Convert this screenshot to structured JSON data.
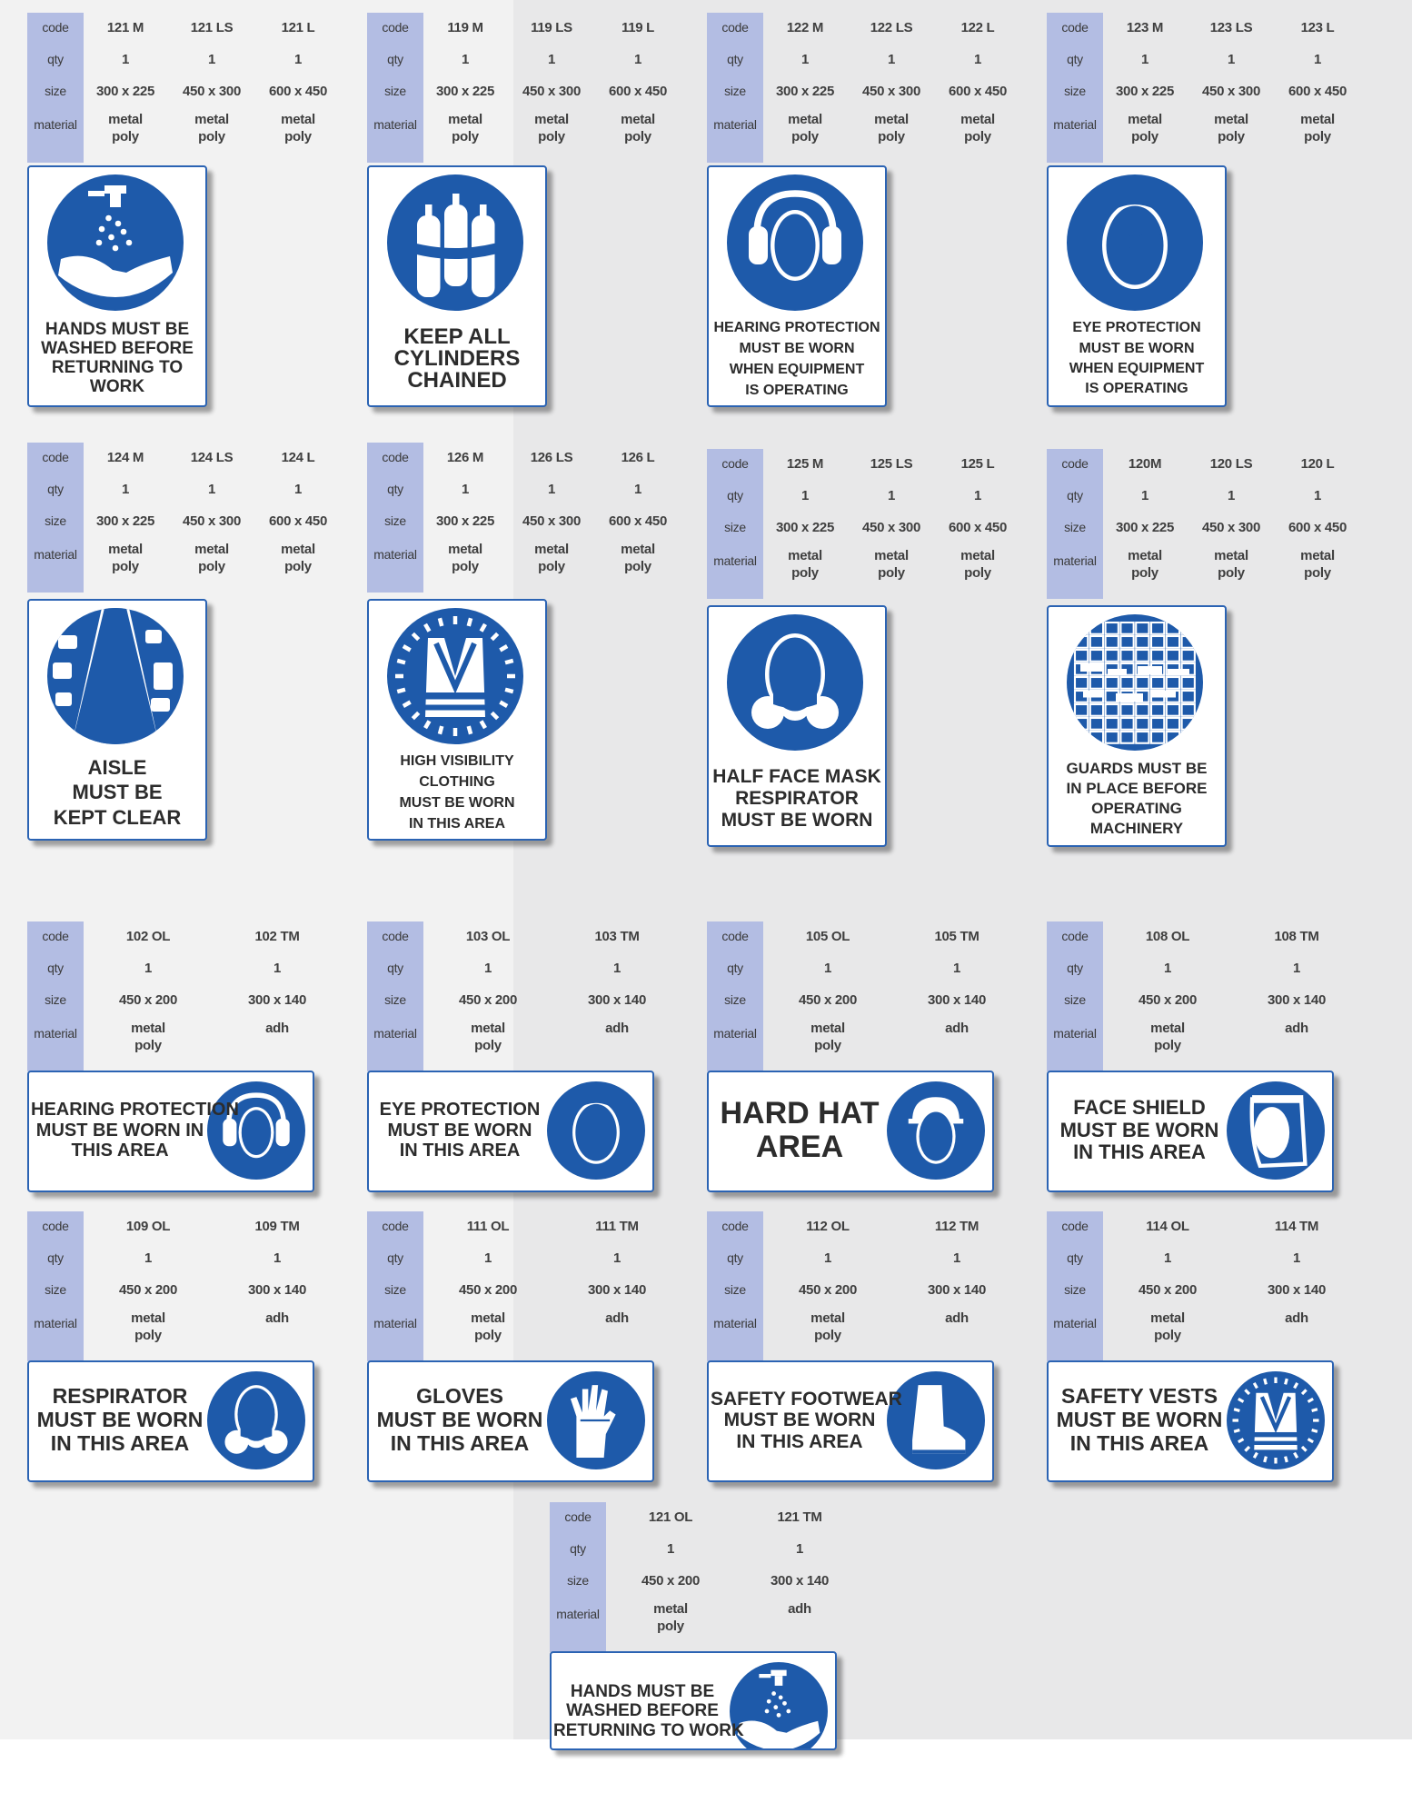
{
  "labels": {
    "code": "code",
    "qty": "qty",
    "size": "size",
    "material": "material"
  },
  "colors": {
    "sign_blue": "#1e5aaa",
    "label_col": "#b3bde3"
  },
  "portrait": [
    {
      "codes": [
        "121 M",
        "121 LS",
        "121 L"
      ],
      "qty": [
        "1",
        "1",
        "1"
      ],
      "size": [
        "300 x 225",
        "450 x 300",
        "600 x 450"
      ],
      "material": [
        [
          "metal",
          "poly"
        ],
        [
          "metal",
          "poly"
        ],
        [
          "metal",
          "poly"
        ]
      ],
      "icon": "hand-wash-icon",
      "text": [
        "HANDS MUST BE",
        "WASHED BEFORE",
        "RETURNING TO WORK"
      ]
    },
    {
      "codes": [
        "119 M",
        "119 LS",
        "119 L"
      ],
      "qty": [
        "1",
        "1",
        "1"
      ],
      "size": [
        "300 x 225",
        "450 x 300",
        "600 x 450"
      ],
      "material": [
        [
          "metal",
          "poly"
        ],
        [
          "metal",
          "poly"
        ],
        [
          "metal",
          "poly"
        ]
      ],
      "icon": "gas-cylinder-icon",
      "text": [
        "KEEP  ALL",
        "CYLINDERS",
        "CHAINED"
      ]
    },
    {
      "codes": [
        "122 M",
        "122 LS",
        "122 L"
      ],
      "qty": [
        "1",
        "1",
        "1"
      ],
      "size": [
        "300 x 225",
        "450 x 300",
        "600 x 450"
      ],
      "material": [
        [
          "metal",
          "poly"
        ],
        [
          "metal",
          "poly"
        ],
        [
          "metal",
          "poly"
        ]
      ],
      "icon": "ear-muffs-icon",
      "text": [
        "HEARING PROTECTION",
        "MUST BE WORN",
        "WHEN EQUIPMENT",
        "IS OPERATING"
      ]
    },
    {
      "codes": [
        "123 M",
        "123 LS",
        "123 L"
      ],
      "qty": [
        "1",
        "1",
        "1"
      ],
      "size": [
        "300 x 225",
        "450 x 300",
        "600 x 450"
      ],
      "material": [
        [
          "metal",
          "poly"
        ],
        [
          "metal",
          "poly"
        ],
        [
          "metal",
          "poly"
        ]
      ],
      "icon": "safety-glasses-icon",
      "text": [
        "EYE PROTECTION",
        "MUST BE WORN",
        "WHEN EQUIPMENT",
        "IS OPERATING"
      ]
    },
    {
      "codes": [
        "124 M",
        "124 LS",
        "124 L"
      ],
      "qty": [
        "1",
        "1",
        "1"
      ],
      "size": [
        "300 x 225",
        "450 x 300",
        "600 x 450"
      ],
      "material": [
        [
          "metal",
          "poly"
        ],
        [
          "metal",
          "poly"
        ],
        [
          "metal",
          "poly"
        ]
      ],
      "icon": "aisle-icon",
      "text": [
        "AISLE",
        "MUST BE",
        "KEPT CLEAR"
      ]
    },
    {
      "codes": [
        "126 M",
        "126 LS",
        "126 L"
      ],
      "qty": [
        "1",
        "1",
        "1"
      ],
      "size": [
        "300 x 225",
        "450 x 300",
        "600 x 450"
      ],
      "material": [
        [
          "metal",
          "poly"
        ],
        [
          "metal",
          "poly"
        ],
        [
          "metal",
          "poly"
        ]
      ],
      "icon": "hi-vis-vest-icon",
      "text": [
        "HIGH VISIBILITY",
        "CLOTHING",
        "MUST BE WORN",
        "IN THIS AREA"
      ]
    },
    {
      "codes": [
        "125 M",
        "125 LS",
        "125 L"
      ],
      "qty": [
        "1",
        "1",
        "1"
      ],
      "size": [
        "300 x 225",
        "450 x 300",
        "600 x 450"
      ],
      "material": [
        [
          "metal",
          "poly"
        ],
        [
          "metal",
          "poly"
        ],
        [
          "metal",
          "poly"
        ]
      ],
      "icon": "respirator-icon",
      "text": [
        "HALF FACE MASK",
        "RESPIRATOR",
        "MUST BE WORN"
      ]
    },
    {
      "codes": [
        "120M",
        "120 LS",
        "120 L"
      ],
      "qty": [
        "1",
        "1",
        "1"
      ],
      "size": [
        "300 x 225",
        "450 x 300",
        "600 x 450"
      ],
      "material": [
        [
          "metal",
          "poly"
        ],
        [
          "metal",
          "poly"
        ],
        [
          "metal",
          "poly"
        ]
      ],
      "icon": "machine-guard-icon",
      "text": [
        "GUARDS MUST BE",
        "IN PLACE BEFORE",
        "OPERATING MACHINERY"
      ]
    }
  ],
  "landscape": [
    {
      "codes": [
        "102 OL",
        "102 TM"
      ],
      "qty": [
        "1",
        "1"
      ],
      "size": [
        "450 x 200",
        "300 x 140"
      ],
      "material": [
        [
          "metal",
          "poly"
        ],
        [
          "adh"
        ]
      ],
      "icon": "ear-muffs-icon",
      "text": [
        "HEARING PROTECTION",
        "MUST BE WORN IN",
        "THIS AREA"
      ]
    },
    {
      "codes": [
        "103 OL",
        "103 TM"
      ],
      "qty": [
        "1",
        "1"
      ],
      "size": [
        "450 x 200",
        "300 x 140"
      ],
      "material": [
        [
          "metal",
          "poly"
        ],
        [
          "adh"
        ]
      ],
      "icon": "safety-glasses-icon",
      "text": [
        "EYE PROTECTION",
        "MUST BE WORN",
        "IN THIS AREA"
      ]
    },
    {
      "codes": [
        "105 OL",
        "105 TM"
      ],
      "qty": [
        "1",
        "1"
      ],
      "size": [
        "450 x 200",
        "300 x 140"
      ],
      "material": [
        [
          "metal",
          "poly"
        ],
        [
          "adh"
        ]
      ],
      "icon": "hard-hat-icon",
      "text": [
        "HARD HAT",
        "AREA"
      ]
    },
    {
      "codes": [
        "108 OL",
        "108 TM"
      ],
      "qty": [
        "1",
        "1"
      ],
      "size": [
        "450 x 200",
        "300 x 140"
      ],
      "material": [
        [
          "metal",
          "poly"
        ],
        [
          "adh"
        ]
      ],
      "icon": "face-shield-icon",
      "text": [
        "FACE SHIELD",
        "MUST BE WORN",
        "IN THIS AREA"
      ]
    },
    {
      "codes": [
        "109 OL",
        "109 TM"
      ],
      "qty": [
        "1",
        "1"
      ],
      "size": [
        "450 x 200",
        "300 x 140"
      ],
      "material": [
        [
          "metal",
          "poly"
        ],
        [
          "adh"
        ]
      ],
      "icon": "respirator-icon",
      "text": [
        "RESPIRATOR",
        "MUST BE WORN",
        "IN THIS AREA"
      ]
    },
    {
      "codes": [
        "111 OL",
        "111 TM"
      ],
      "qty": [
        "1",
        "1"
      ],
      "size": [
        "450 x 200",
        "300 x 140"
      ],
      "material": [
        [
          "metal",
          "poly"
        ],
        [
          "adh"
        ]
      ],
      "icon": "gloves-icon",
      "text": [
        "GLOVES",
        "MUST BE WORN",
        "IN THIS AREA"
      ]
    },
    {
      "codes": [
        "112 OL",
        "112 TM"
      ],
      "qty": [
        "1",
        "1"
      ],
      "size": [
        "450 x 200",
        "300 x 140"
      ],
      "material": [
        [
          "metal",
          "poly"
        ],
        [
          "adh"
        ]
      ],
      "icon": "safety-boot-icon",
      "text": [
        "SAFETY FOOTWEAR",
        "MUST BE WORN",
        "IN THIS AREA"
      ]
    },
    {
      "codes": [
        "114 OL",
        "114 TM"
      ],
      "qty": [
        "1",
        "1"
      ],
      "size": [
        "450 x 200",
        "300 x 140"
      ],
      "material": [
        [
          "metal",
          "poly"
        ],
        [
          "adh"
        ]
      ],
      "icon": "hi-vis-vest-icon",
      "text": [
        "SAFETY VESTS",
        "MUST BE WORN",
        "IN THIS AREA"
      ]
    },
    {
      "codes": [
        "121 OL",
        "121 TM"
      ],
      "qty": [
        "1",
        "1"
      ],
      "size": [
        "450 x 200",
        "300 x 140"
      ],
      "material": [
        [
          "metal",
          "poly"
        ],
        [
          "adh"
        ]
      ],
      "icon": "hand-wash-icon",
      "text": [
        "HANDS MUST BE",
        "WASHED BEFORE",
        "RETURNING TO WORK"
      ]
    }
  ]
}
